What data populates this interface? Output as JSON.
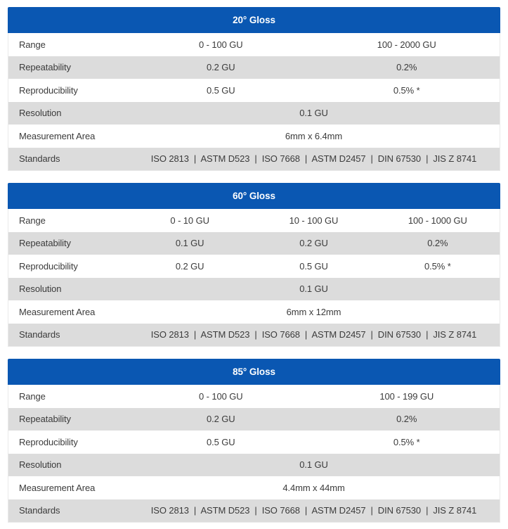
{
  "colors": {
    "header_bg": "#0a57b2",
    "header_text": "#ffffff",
    "row_bg": "#ffffff",
    "row_alt_bg": "#dcdcdc",
    "body_text": "#3b3b3b",
    "table_border": "#e9e9e9",
    "page_bg": "#ffffff"
  },
  "tables": [
    {
      "title": "20° Gloss",
      "rows": [
        {
          "label": "Range",
          "values": [
            "0 - 100 GU",
            "100 - 2000 GU"
          ]
        },
        {
          "label": "Repeatability",
          "values": [
            "0.2 GU",
            "0.2%"
          ]
        },
        {
          "label": "Reproducibility",
          "values": [
            "0.5 GU",
            "0.5% *"
          ]
        },
        {
          "label": "Resolution",
          "values": [
            "0.1 GU"
          ]
        },
        {
          "label": "Measurement Area",
          "values": [
            "6mm x 6.4mm"
          ]
        },
        {
          "label": "Standards",
          "values": [
            "ISO 2813  |  ASTM D523  |  ISO 7668  |  ASTM D2457  |  DIN 67530  |  JIS Z 8741"
          ]
        }
      ]
    },
    {
      "title": "60° Gloss",
      "rows": [
        {
          "label": "Range",
          "values": [
            "0 - 10 GU",
            "10 - 100 GU",
            "100 - 1000 GU"
          ]
        },
        {
          "label": "Repeatability",
          "values": [
            "0.1 GU",
            "0.2 GU",
            "0.2%"
          ]
        },
        {
          "label": "Reproducibility",
          "values": [
            "0.2 GU",
            "0.5 GU",
            "0.5% *"
          ]
        },
        {
          "label": "Resolution",
          "values": [
            "0.1 GU"
          ]
        },
        {
          "label": "Measurement Area",
          "values": [
            "6mm x 12mm"
          ]
        },
        {
          "label": "Standards",
          "values": [
            "ISO 2813  |  ASTM D523  |  ISO 7668  |  ASTM D2457  |  DIN 67530  |  JIS Z 8741"
          ]
        }
      ]
    },
    {
      "title": "85° Gloss",
      "rows": [
        {
          "label": "Range",
          "values": [
            "0 - 100 GU",
            "100 - 199 GU"
          ]
        },
        {
          "label": "Repeatability",
          "values": [
            "0.2 GU",
            "0.2%"
          ]
        },
        {
          "label": "Reproducibility",
          "values": [
            "0.5 GU",
            "0.5% *"
          ]
        },
        {
          "label": "Resolution",
          "values": [
            "0.1 GU"
          ]
        },
        {
          "label": "Measurement Area",
          "values": [
            "4.4mm x 44mm"
          ]
        },
        {
          "label": "Standards",
          "values": [
            "ISO 2813  |  ASTM D523  |  ISO 7668  |  ASTM D2457  |  DIN 67530  |  JIS Z 8741"
          ]
        }
      ]
    }
  ]
}
